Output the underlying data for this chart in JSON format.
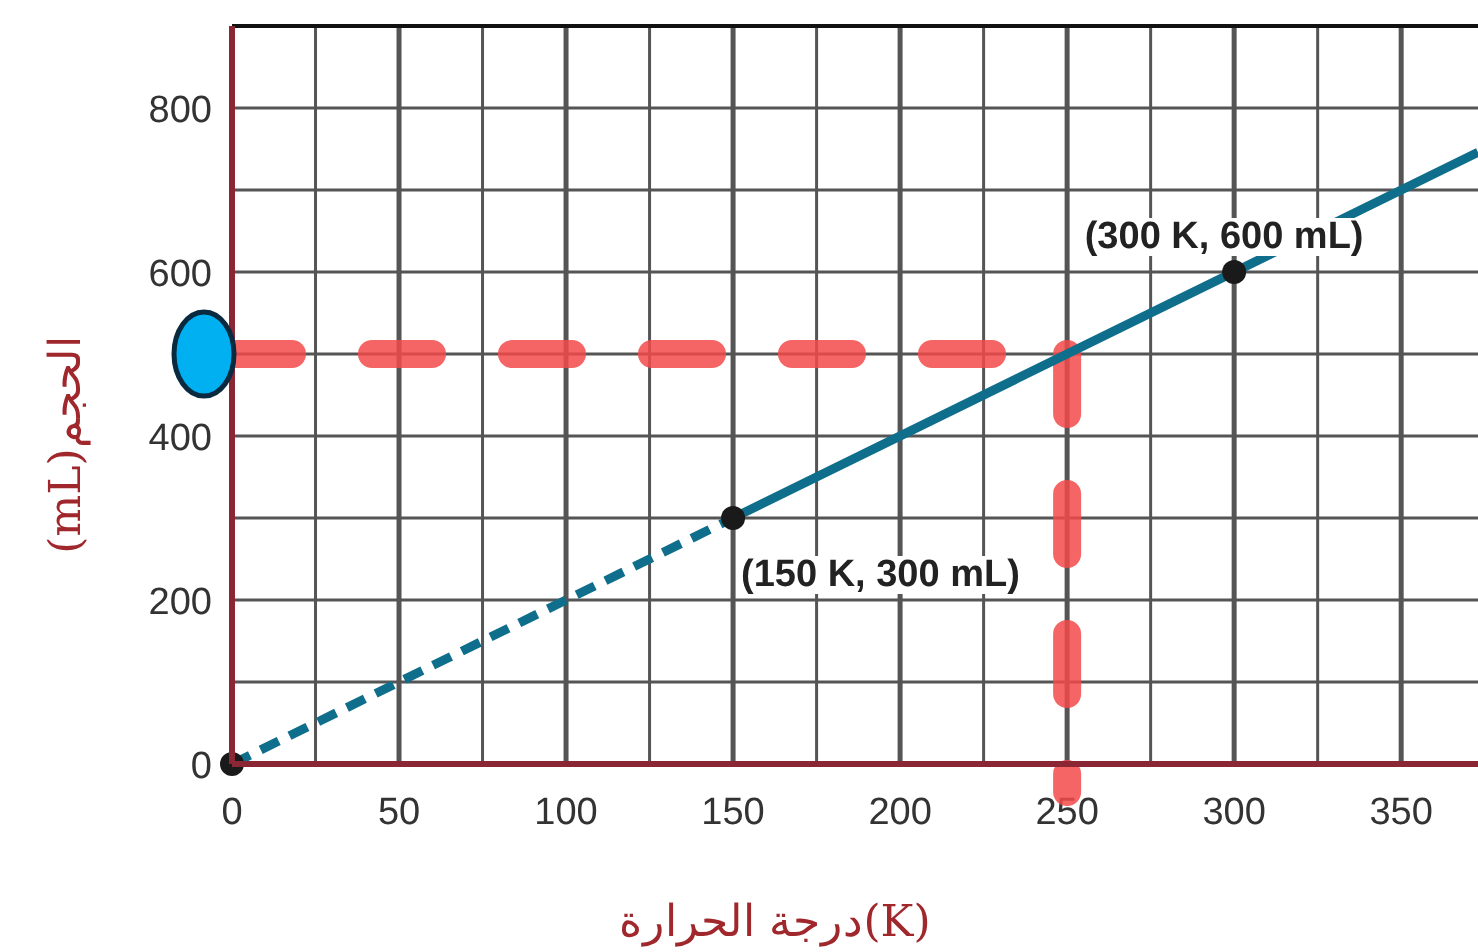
{
  "chart_data": {
    "type": "line",
    "xlabel": "درجة الحرارة(K)",
    "ylabel": "(mL)الحجم",
    "xlim": [
      0,
      373
    ],
    "ylim": [
      0,
      900
    ],
    "xticks": [
      0,
      {
        "value": 25,
        "label": null
      },
      50,
      {
        "value": 75,
        "label": null
      },
      100,
      {
        "value": 125,
        "label": null
      },
      150,
      {
        "value": 175,
        "label": null
      },
      200,
      {
        "value": 225,
        "label": null
      },
      250,
      {
        "value": 275,
        "label": null
      },
      300,
      {
        "value": 325,
        "label": null
      },
      350
    ],
    "yticks": [
      0,
      {
        "value": 100,
        "label": null
      },
      200,
      {
        "value": 300,
        "label": null
      },
      400,
      {
        "value": 500,
        "label": null
      },
      600,
      {
        "value": 700,
        "label": null
      },
      800
    ],
    "grid": true,
    "series": [
      {
        "type": "line",
        "x": [
          0,
          150
        ],
        "values": [
          0,
          300
        ],
        "color": "#0e6e8c",
        "line_style": "dashed"
      },
      {
        "type": "line",
        "x": [
          150,
          373
        ],
        "values": [
          300,
          746
        ],
        "color": "#0e6e8c",
        "line_style": "solid"
      },
      {
        "type": "scatter",
        "x": [
          0,
          150,
          300
        ],
        "values": [
          0,
          300,
          600
        ],
        "color": "#1a1a1a",
        "marker": "circle"
      }
    ],
    "ref_lines": [
      {
        "axis": "y",
        "value": 500,
        "color": "#f44a4a",
        "line_style": "dashed"
      },
      {
        "axis": "x",
        "value": 250,
        "color": "#f44a4a",
        "line_style": "dashed"
      }
    ],
    "annotations": [
      {
        "text": "(300 K, 600 mL)",
        "x": 300,
        "y": 600
      },
      {
        "text": "(150 K, 300 mL)",
        "x": 150,
        "y": 300
      }
    ]
  }
}
